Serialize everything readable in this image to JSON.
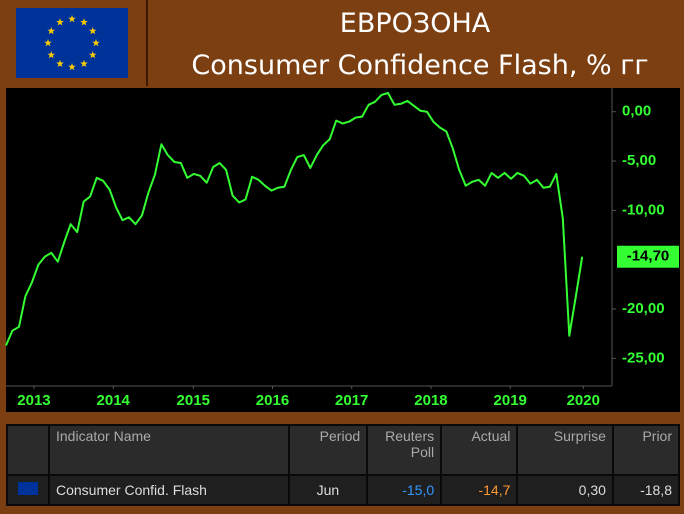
{
  "header": {
    "title": "ЕВРОЗОНА",
    "subtitle": "Consumer Confidence Flash, % гг"
  },
  "chart_data": {
    "type": "line",
    "x": [
      2013,
      2013.083,
      2013.167,
      2013.25,
      2013.333,
      2013.417,
      2013.5,
      2013.583,
      2013.667,
      2013.75,
      2013.833,
      2013.917,
      2014,
      2014.083,
      2014.167,
      2014.25,
      2014.333,
      2014.417,
      2014.5,
      2014.583,
      2014.667,
      2014.75,
      2014.833,
      2014.917,
      2015,
      2015.083,
      2015.167,
      2015.25,
      2015.333,
      2015.417,
      2015.5,
      2015.583,
      2015.667,
      2015.75,
      2015.833,
      2015.917,
      2016,
      2016.083,
      2016.167,
      2016.25,
      2016.333,
      2016.417,
      2016.5,
      2016.583,
      2016.667,
      2016.75,
      2016.833,
      2016.917,
      2017,
      2017.083,
      2017.167,
      2017.25,
      2017.333,
      2017.417,
      2017.5,
      2017.583,
      2017.667,
      2017.75,
      2017.833,
      2017.917,
      2018,
      2018.083,
      2018.167,
      2018.25,
      2018.333,
      2018.417,
      2018.5,
      2018.583,
      2018.667,
      2018.75,
      2018.833,
      2018.917,
      2019,
      2019.083,
      2019.167,
      2019.25,
      2019.333,
      2019.417,
      2019.5,
      2019.583,
      2019.667,
      2019.75,
      2019.833,
      2019.917,
      2020,
      2020.083,
      2020.167,
      2020.25,
      2020.333,
      2020.417
    ],
    "series": [
      {
        "name": "Consumer Confidence Flash",
        "color": "#33ff33",
        "values": [
          -23.7,
          -22.2,
          -21.8,
          -18.7,
          -17.3,
          -15.5,
          -14.7,
          -14.3,
          -15.2,
          -13.2,
          -11.4,
          -12.2,
          -9.1,
          -8.6,
          -6.7,
          -7.0,
          -7.9,
          -9.7,
          -11.0,
          -10.7,
          -11.4,
          -10.5,
          -8.2,
          -6.4,
          -3.3,
          -4.4,
          -5.1,
          -5.2,
          -6.7,
          -6.3,
          -6.5,
          -7.2,
          -5.6,
          -5.2,
          -5.9,
          -8.5,
          -9.2,
          -8.9,
          -6.6,
          -6.9,
          -7.5,
          -8.0,
          -7.7,
          -7.6,
          -5.9,
          -4.6,
          -4.4,
          -5.7,
          -4.4,
          -3.4,
          -2.8,
          -0.9,
          -1.2,
          -1.0,
          -0.6,
          -0.5,
          0.7,
          1.0,
          1.7,
          1.9,
          0.7,
          0.8,
          1.1,
          0.6,
          0.1,
          0.0,
          -1.0,
          -1.6,
          -2.0,
          -3.7,
          -5.9,
          -7.5,
          -7.1,
          -6.9,
          -7.5,
          -6.2,
          -6.7,
          -6.2,
          -6.8,
          -6.2,
          -6.5,
          -7.3,
          -6.9,
          -7.7,
          -7.6,
          -6.3,
          -10.8,
          -22.7,
          -18.8,
          -14.7
        ]
      }
    ],
    "last_value_label": "-14,70",
    "xlim": [
      2013,
      2020.8
    ],
    "xticks": [
      {
        "value": 2013.36,
        "label": "2013"
      },
      {
        "value": 2014.38,
        "label": "2014"
      },
      {
        "value": 2015.41,
        "label": "2015"
      },
      {
        "value": 2016.43,
        "label": "2016"
      },
      {
        "value": 2017.45,
        "label": "2017"
      },
      {
        "value": 2018.47,
        "label": "2018"
      },
      {
        "value": 2019.49,
        "label": "2019"
      },
      {
        "value": 2020.43,
        "label": "2020"
      }
    ],
    "ylim": [
      -27.6,
      2.2
    ],
    "yticks": [
      {
        "value": 0,
        "label": "0,00"
      },
      {
        "value": -5,
        "label": "-5,00"
      },
      {
        "value": -10,
        "label": "-10,00"
      },
      {
        "value": -20,
        "label": "-20,00"
      },
      {
        "value": -25,
        "label": "-25,00"
      }
    ]
  },
  "table": {
    "columns": [
      "Indicator Name",
      "Period",
      "Reuters Poll",
      "Actual",
      "Surprise",
      "Prior"
    ],
    "rows": [
      [
        "Consumer Confid. Flash",
        "Jun",
        "-15,0",
        "-14,7",
        "0,30",
        "-18,8"
      ]
    ]
  }
}
